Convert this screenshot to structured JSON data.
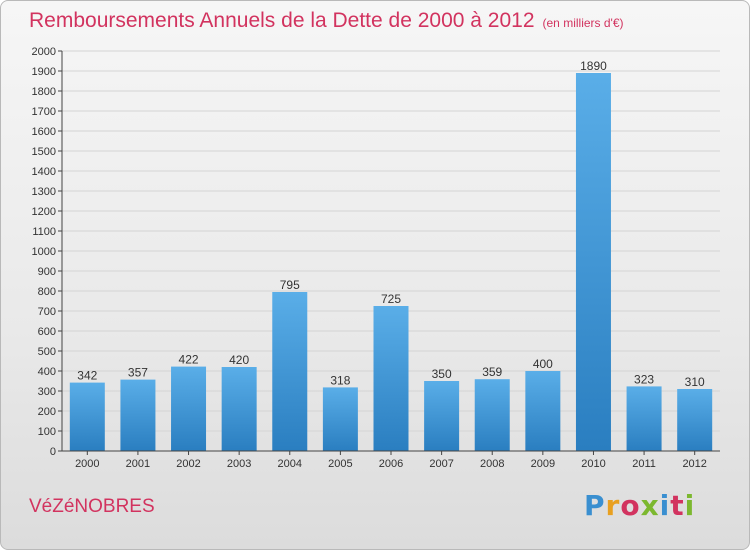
{
  "header": {
    "title": "Remboursements Annuels de la Dette de 2000 à 2012",
    "subtitle": "(en milliers d'€)"
  },
  "commune": "VéZéNOBRES",
  "logo": {
    "text": "Proxiti",
    "colors": [
      "#3a8fd0",
      "#e8a020",
      "#d2335f",
      "#7cb82f",
      "#3a8fd0",
      "#d2335f",
      "#7cb82f"
    ]
  },
  "colors": {
    "bar_light": "#5aaee8",
    "bar_dark": "#2a7ec0",
    "grid": "#d4d4d4",
    "axis": "#444444"
  },
  "chart_data": {
    "type": "bar",
    "categories": [
      "2000",
      "2001",
      "2002",
      "2003",
      "2004",
      "2005",
      "2006",
      "2007",
      "2008",
      "2009",
      "2010",
      "2011",
      "2012"
    ],
    "values": [
      342,
      357,
      422,
      420,
      795,
      318,
      725,
      350,
      359,
      400,
      1890,
      323,
      310
    ],
    "ylim": [
      0,
      2000
    ],
    "ytick_step": 100,
    "grid": true,
    "legend": "none"
  }
}
